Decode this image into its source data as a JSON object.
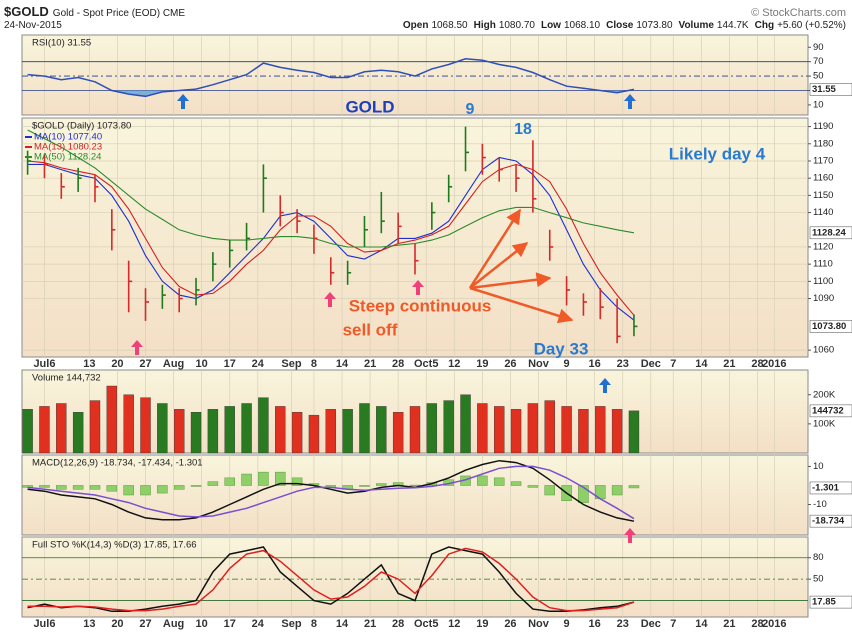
{
  "header": {
    "symbol": "$GOLD",
    "name": "Gold - Spot Price (EOD) CME",
    "credit": "© StockCharts.com",
    "date": "24-Nov-2015",
    "quote": [
      {
        "label": "Open",
        "value": "1068.50"
      },
      {
        "label": "High",
        "value": "1080.70"
      },
      {
        "label": "Low",
        "value": "1068.10"
      },
      {
        "label": "Close",
        "value": "1073.80"
      },
      {
        "label": "Volume",
        "value": "144.7K"
      },
      {
        "label": "Chg",
        "value": "+5.60 (+0.52%)"
      }
    ]
  },
  "annotations": [
    "GOLD",
    "9",
    "18",
    "Likely day 4",
    "Steep continuous",
    "sell off",
    "Day 33"
  ],
  "chart_data": [
    {
      "type": "line",
      "title": "RSI(10) 31.55",
      "x": [
        0,
        3,
        6,
        9,
        12,
        15,
        18,
        21,
        24,
        27,
        30,
        33,
        36,
        39,
        42,
        45,
        48,
        51,
        54,
        57,
        60,
        63,
        66,
        69,
        72,
        75,
        78,
        81,
        84,
        87,
        90,
        93,
        96,
        99,
        102,
        105,
        108
      ],
      "xlim": [
        -1,
        139
      ],
      "ylim": [
        -4,
        107
      ],
      "yticks": [
        90,
        70,
        50,
        30,
        10
      ],
      "levels": [
        70,
        50,
        30
      ],
      "series": [
        {
          "color": "#2f4fb8",
          "fill_below": 30,
          "fill_color": "#5fa3d8",
          "values": [
            52,
            50,
            45,
            48,
            42,
            30,
            25,
            22,
            28,
            30,
            32,
            38,
            45,
            52,
            68,
            62,
            58,
            55,
            48,
            48,
            56,
            58,
            56,
            50,
            60,
            66,
            74,
            72,
            66,
            62,
            55,
            45,
            36,
            33,
            30,
            27,
            31.55
          ]
        }
      ],
      "last_labels": [
        31.55
      ]
    },
    {
      "type": "ohlc",
      "title": "$GOLD (Daily) 1073.80",
      "x": [
        0,
        3,
        6,
        9,
        12,
        15,
        18,
        21,
        24,
        27,
        30,
        33,
        36,
        39,
        42,
        45,
        48,
        51,
        54,
        57,
        60,
        63,
        66,
        69,
        72,
        75,
        78,
        81,
        84,
        87,
        90,
        93,
        96,
        99,
        102,
        105,
        108
      ],
      "high": [
        1176,
        1174,
        1163,
        1166,
        1162,
        1142,
        1112,
        1096,
        1098,
        1096,
        1102,
        1117,
        1124,
        1134,
        1168,
        1150,
        1142,
        1133,
        1114,
        1112,
        1138,
        1152,
        1140,
        1122,
        1146,
        1162,
        1190,
        1180,
        1172,
        1168,
        1182,
        1130,
        1103,
        1093,
        1096,
        1090,
        1080.7
      ],
      "low": [
        1162,
        1160,
        1148,
        1152,
        1146,
        1118,
        1082,
        1077,
        1084,
        1082,
        1086,
        1100,
        1108,
        1118,
        1140,
        1132,
        1128,
        1116,
        1098,
        1098,
        1120,
        1128,
        1122,
        1104,
        1130,
        1146,
        1164,
        1162,
        1158,
        1152,
        1140,
        1112,
        1086,
        1080,
        1078,
        1064,
        1068.1
      ],
      "close": [
        1170,
        1168,
        1155,
        1160,
        1155,
        1130,
        1100,
        1088,
        1092,
        1090,
        1095,
        1110,
        1118,
        1125,
        1160,
        1140,
        1135,
        1125,
        1105,
        1105,
        1130,
        1135,
        1132,
        1112,
        1140,
        1155,
        1175,
        1172,
        1165,
        1160,
        1148,
        1120,
        1095,
        1088,
        1085,
        1068,
        1073.8
      ],
      "up_color": "#1d7a1d",
      "down_color": "#d42a2a",
      "lines": [
        {
          "name": "MA(10) 1077.40",
          "color": "#1c2fcf",
          "values": [
            1168,
            1168,
            1165,
            1162,
            1160,
            1150,
            1135,
            1115,
            1100,
            1092,
            1090,
            1095,
            1105,
            1115,
            1125,
            1138,
            1140,
            1135,
            1125,
            1115,
            1113,
            1118,
            1125,
            1125,
            1128,
            1135,
            1150,
            1165,
            1172,
            1170,
            1162,
            1150,
            1130,
            1110,
            1095,
            1085,
            1077.4
          ]
        },
        {
          "name": "MA(13) 1080.23",
          "color": "#d42020",
          "values": [
            1170,
            1169,
            1166,
            1164,
            1162,
            1155,
            1142,
            1125,
            1108,
            1097,
            1092,
            1093,
            1100,
            1110,
            1118,
            1130,
            1138,
            1138,
            1132,
            1122,
            1117,
            1118,
            1122,
            1124,
            1127,
            1132,
            1145,
            1158,
            1165,
            1168,
            1165,
            1158,
            1142,
            1122,
            1105,
            1092,
            1080.23
          ]
        },
        {
          "name": "MA(50) 1128.24",
          "color": "#2c8a2c",
          "values": [
            1188,
            1183,
            1178,
            1172,
            1166,
            1158,
            1150,
            1142,
            1136,
            1130,
            1127,
            1125,
            1124,
            1124,
            1125,
            1126,
            1126,
            1125,
            1122,
            1120,
            1120,
            1120,
            1121,
            1122,
            1124,
            1127,
            1132,
            1137,
            1141,
            1143,
            1143,
            1140,
            1137,
            1134,
            1132,
            1130,
            1128.24
          ]
        }
      ],
      "xlim": [
        -1,
        139
      ],
      "ylim": [
        1056,
        1195
      ],
      "grid": true,
      "yticks": [
        1190,
        1180,
        1170,
        1160,
        1150,
        1140,
        1120,
        1110,
        1100,
        1090,
        1060
      ],
      "xticks": [
        {
          "value": 3,
          "label": "Jul6"
        },
        {
          "value": 11,
          "label": "13"
        },
        {
          "value": 16,
          "label": "20"
        },
        {
          "value": 21,
          "label": "27"
        },
        {
          "value": 26,
          "label": "Aug"
        },
        {
          "value": 31,
          "label": "10"
        },
        {
          "value": 36,
          "label": "17"
        },
        {
          "value": 41,
          "label": "24"
        },
        {
          "value": 47,
          "label": "Sep"
        },
        {
          "value": 51,
          "label": "8"
        },
        {
          "value": 56,
          "label": "14"
        },
        {
          "value": 61,
          "label": "21"
        },
        {
          "value": 66,
          "label": "28"
        },
        {
          "value": 71,
          "label": "Oct5"
        },
        {
          "value": 76,
          "label": "12"
        },
        {
          "value": 81,
          "label": "19"
        },
        {
          "value": 86,
          "label": "26"
        },
        {
          "value": 91,
          "label": "Nov"
        },
        {
          "value": 96,
          "label": "9"
        },
        {
          "value": 101,
          "label": "16"
        },
        {
          "value": 106,
          "label": "23"
        },
        {
          "value": 111,
          "label": "Dec"
        },
        {
          "value": 115,
          "label": "7"
        },
        {
          "value": 120,
          "label": "14"
        },
        {
          "value": 125,
          "label": "21"
        },
        {
          "value": 130,
          "label": "28"
        },
        {
          "value": 133,
          "label": "2016"
        }
      ],
      "last_labels": [
        1128.24,
        {
          "value": 1073.8,
          "label": "1073.80"
        }
      ]
    },
    {
      "type": "bar",
      "title": "Volume 144,732",
      "x": [
        0,
        3,
        6,
        9,
        12,
        15,
        18,
        21,
        24,
        27,
        30,
        33,
        36,
        39,
        42,
        45,
        48,
        51,
        54,
        57,
        60,
        63,
        66,
        69,
        72,
        75,
        78,
        81,
        84,
        87,
        90,
        93,
        96,
        99,
        102,
        105,
        108
      ],
      "values": [
        150000,
        160000,
        170000,
        140000,
        180000,
        230000,
        200000,
        190000,
        170000,
        150000,
        140000,
        150000,
        160000,
        170000,
        190000,
        160000,
        140000,
        130000,
        150000,
        150000,
        170000,
        160000,
        140000,
        160000,
        170000,
        180000,
        200000,
        170000,
        160000,
        150000,
        170000,
        180000,
        160000,
        150000,
        160000,
        150000,
        144732
      ],
      "up_color": "#2a7a22",
      "down_color": "#e03020",
      "xlim": [
        -1,
        139
      ],
      "ylim": [
        0,
        285000
      ],
      "yticks": [
        {
          "value": 200000,
          "label": "200K"
        },
        {
          "value": 100000,
          "label": "100K"
        }
      ],
      "last_labels": [
        144732
      ]
    },
    {
      "type": "line",
      "title": "MACD(12,26,9) -18.734, -17.434, -1.301",
      "x": [
        0,
        3,
        6,
        9,
        12,
        15,
        18,
        21,
        24,
        27,
        30,
        33,
        36,
        39,
        42,
        45,
        48,
        51,
        54,
        57,
        60,
        63,
        66,
        69,
        72,
        75,
        78,
        81,
        84,
        87,
        90,
        93,
        96,
        99,
        102,
        105,
        108
      ],
      "xlim": [
        -1,
        139
      ],
      "ylim": [
        -26,
        16
      ],
      "yticks": [
        10,
        -10
      ],
      "series": [
        {
          "color": "#8fcf6a",
          "style": "bar",
          "values": [
            -1,
            -1,
            -2,
            -2,
            -2,
            -3,
            -5,
            -5,
            -4,
            -2,
            -0.5,
            2,
            4,
            6,
            7,
            7,
            4,
            1,
            -1,
            -2,
            -0.5,
            1,
            1.5,
            0.2,
            1.5,
            3,
            5,
            5,
            4,
            2,
            -1,
            -5,
            -8,
            -9,
            -7,
            -5,
            -1.301
          ]
        },
        {
          "color": "#111111",
          "values": [
            -2,
            -3,
            -5,
            -6,
            -7,
            -10,
            -14,
            -17,
            -18,
            -18,
            -17,
            -14,
            -10,
            -6,
            -2,
            1,
            1,
            0,
            -2,
            -4,
            -3,
            -1,
            0,
            -1,
            1,
            4,
            8,
            11,
            13,
            12,
            9,
            3,
            -4,
            -10,
            -14,
            -17,
            -18.734
          ]
        },
        {
          "color": "#7a4fd0",
          "values": [
            -1,
            -2,
            -3,
            -4,
            -5,
            -7,
            -9,
            -12,
            -14,
            -16,
            -16.5,
            -16,
            -14,
            -12,
            -9,
            -6,
            -3,
            -1,
            -1,
            -2,
            -2.5,
            -2,
            -1.5,
            -1.2,
            -0.5,
            1,
            3,
            6,
            9,
            10,
            10,
            8,
            4,
            -1,
            -7,
            -12,
            -17.434
          ]
        }
      ],
      "last_labels": [
        -1.301,
        -18.734
      ]
    },
    {
      "type": "line",
      "title": "Full STO %K(14,3) %D(3) 17.85, 17.66",
      "x": [
        0,
        3,
        6,
        9,
        12,
        15,
        18,
        21,
        24,
        27,
        30,
        33,
        36,
        39,
        42,
        45,
        48,
        51,
        54,
        57,
        60,
        63,
        66,
        69,
        72,
        75,
        78,
        81,
        84,
        87,
        90,
        93,
        96,
        99,
        102,
        105,
        108
      ],
      "xlim": [
        -1,
        139
      ],
      "ylim": [
        -3,
        109
      ],
      "yticks": [
        80,
        50
      ],
      "levels": [
        80,
        50,
        20
      ],
      "series": [
        {
          "color": "#111111",
          "values": [
            10,
            15,
            10,
            12,
            10,
            5,
            5,
            8,
            12,
            15,
            20,
            60,
            85,
            90,
            95,
            60,
            40,
            20,
            15,
            30,
            50,
            70,
            30,
            20,
            85,
            95,
            90,
            85,
            60,
            30,
            8,
            5,
            5,
            7,
            10,
            12,
            17.85
          ]
        },
        {
          "color": "#e02020",
          "values": [
            12,
            12,
            11,
            12,
            11,
            8,
            6,
            6,
            8,
            12,
            15,
            35,
            65,
            85,
            90,
            75,
            55,
            35,
            22,
            25,
            40,
            60,
            50,
            30,
            55,
            85,
            93,
            88,
            72,
            50,
            25,
            10,
            6,
            6,
            8,
            10,
            17.66
          ]
        }
      ],
      "xticks": [
        {
          "value": 3,
          "label": "Jul6"
        },
        {
          "value": 11,
          "label": "13"
        },
        {
          "value": 16,
          "label": "20"
        },
        {
          "value": 21,
          "label": "27"
        },
        {
          "value": 26,
          "label": "Aug"
        },
        {
          "value": 31,
          "label": "10"
        },
        {
          "value": 36,
          "label": "17"
        },
        {
          "value": 41,
          "label": "24"
        },
        {
          "value": 47,
          "label": "Sep"
        },
        {
          "value": 51,
          "label": "8"
        },
        {
          "value": 56,
          "label": "14"
        },
        {
          "value": 61,
          "label": "21"
        },
        {
          "value": 66,
          "label": "28"
        },
        {
          "value": 71,
          "label": "Oct5"
        },
        {
          "value": 76,
          "label": "12"
        },
        {
          "value": 81,
          "label": "19"
        },
        {
          "value": 86,
          "label": "26"
        },
        {
          "value": 91,
          "label": "Nov"
        },
        {
          "value": 96,
          "label": "9"
        },
        {
          "value": 101,
          "label": "16"
        },
        {
          "value": 106,
          "label": "23"
        },
        {
          "value": 111,
          "label": "Dec"
        },
        {
          "value": 115,
          "label": "7"
        },
        {
          "value": 120,
          "label": "14"
        },
        {
          "value": 125,
          "label": "21"
        },
        {
          "value": 130,
          "label": "28"
        },
        {
          "value": 133,
          "label": "2016"
        }
      ],
      "last_labels": [
        17.85
      ]
    }
  ]
}
